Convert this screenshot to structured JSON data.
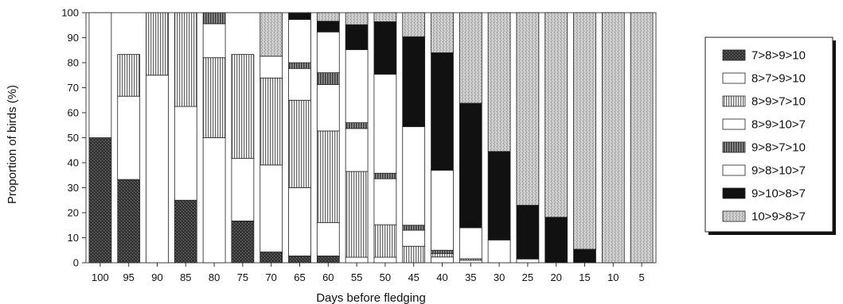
{
  "chart_data": {
    "type": "bar",
    "stacked": true,
    "percent": true,
    "xlabel": "Days before fledging",
    "ylabel": "Proportion of birds (%)",
    "ylim": [
      0,
      100
    ],
    "yticks": [
      0,
      10,
      20,
      30,
      40,
      50,
      60,
      70,
      80,
      90,
      100
    ],
    "grid": false,
    "legend_position": "right",
    "categories": [
      "100",
      "95",
      "90",
      "85",
      "80",
      "75",
      "70",
      "65",
      "60",
      "55",
      "50",
      "45",
      "40",
      "35",
      "30",
      "25",
      "20",
      "15",
      "10",
      "5"
    ],
    "series": [
      {
        "name": "7>8>9>10",
        "pattern": "dark-stipple",
        "color": "#3a3a3a",
        "values": [
          50,
          33.3,
          0,
          25,
          0,
          16.7,
          4.3,
          2.7,
          2.7,
          0,
          0,
          0,
          0,
          0,
          0,
          0,
          0,
          0,
          0,
          0
        ]
      },
      {
        "name": "8>7>9>10",
        "pattern": "white",
        "color": "#ffffff",
        "values": [
          50,
          33.3,
          75,
          37.5,
          50,
          25,
          34.8,
          27.3,
          13.3,
          2.2,
          2.2,
          0,
          2.3,
          1,
          0,
          0,
          0,
          0,
          0,
          0
        ]
      },
      {
        "name": "8>9>7>10",
        "pattern": "vertical-lines",
        "color": "#9a9a9a",
        "values": [
          0,
          16.7,
          25,
          37.5,
          32,
          41.6,
          34.8,
          35,
          36.7,
          34.3,
          13,
          6.6,
          1.4,
          0.6,
          0,
          0,
          0,
          0,
          0,
          0
        ]
      },
      {
        "name": "8>9>10>7",
        "pattern": "white",
        "color": "#ffffff",
        "values": [
          0,
          0,
          0,
          0,
          13.6,
          0,
          8.7,
          12.7,
          18.6,
          17.2,
          18.4,
          6.4,
          0,
          0,
          0,
          0,
          0,
          0,
          0,
          0
        ]
      },
      {
        "name": "9>8>7>10",
        "pattern": "dense-vertical",
        "color": "#6a6a6a",
        "values": [
          0,
          0,
          0,
          0,
          4.4,
          0,
          0,
          2.3,
          4.7,
          2.3,
          2.2,
          2,
          1.3,
          0,
          0,
          0,
          0,
          0,
          0,
          0
        ]
      },
      {
        "name": "9>8>10>7",
        "pattern": "white",
        "color": "#ffffff",
        "values": [
          0,
          0,
          0,
          0,
          0,
          0,
          0,
          17.3,
          16.3,
          29.2,
          39.6,
          39.4,
          32,
          12.4,
          9.1,
          1.5,
          0,
          0,
          0,
          0
        ]
      },
      {
        "name": "9>10>8>7",
        "pattern": "black",
        "color": "#111111",
        "values": [
          0,
          0,
          0,
          0,
          0,
          0,
          0,
          2.5,
          4.3,
          10,
          21,
          36,
          47,
          49.8,
          35.4,
          21.5,
          18.2,
          5.4,
          0,
          0
        ]
      },
      {
        "name": "10>9>8>7",
        "pattern": "light-stipple",
        "color": "#c8c8c8",
        "values": [
          0,
          0,
          0,
          0,
          0,
          0,
          17.4,
          0.2,
          3.4,
          4.8,
          3.6,
          9.6,
          16,
          36.2,
          55.5,
          77,
          81.8,
          94.6,
          100,
          100
        ]
      }
    ]
  }
}
